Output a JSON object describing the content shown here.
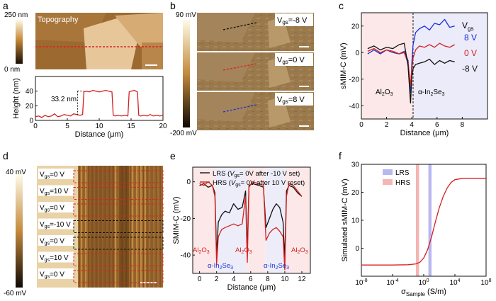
{
  "panel_letters": [
    "a",
    "b",
    "c",
    "d",
    "e",
    "f"
  ],
  "colors": {
    "red": "#d42020",
    "blue": "#1a2fd6",
    "black": "#111111",
    "pink_band": "#f4b6b4",
    "blue_band": "#b8b8f0",
    "stack_labels_red": "#e02020",
    "stack_labels_black": "#111111"
  },
  "panel_a": {
    "image_label": "Topography",
    "colorbar_max": "250 nm",
    "colorbar_min": "0 nm",
    "step_annotation": "33.2 nm"
  },
  "panel_b": {
    "colorbar_max": "90 mV",
    "colorbar_min": "-200 mV",
    "stack_labels": [
      "V",
      "V",
      "V"
    ],
    "stack_values": [
      "gs",
      "gs",
      "gs"
    ],
    "stack_suffix": [
      "=-8 V",
      "=0 V",
      "=8 V"
    ]
  },
  "panel_c": {
    "legend_title_v": "V",
    "legend_title_sub": "gs",
    "legend_entries": [
      "8 V",
      "0 V",
      "-8 V"
    ],
    "region_left": "Al",
    "region_left_sub1": "2",
    "region_left_mid": "O",
    "region_left_sub2": "3",
    "region_right_prefix": "α-In",
    "region_right_sub1": "2",
    "region_right_mid": "Se",
    "region_right_sub2": "3"
  },
  "panel_d": {
    "colorbar_max": "40 mV",
    "colorbar_min": "-60 mV",
    "rows": [
      {
        "v": "V",
        "sub": "gs",
        "val": "=0 V",
        "color": "#e02020"
      },
      {
        "v": "V",
        "sub": "gs",
        "val": "=10 V",
        "color": "#e02020"
      },
      {
        "v": "V",
        "sub": "gs",
        "val": "=0 V",
        "color": "#e02020"
      },
      {
        "v": "V",
        "sub": "gs",
        "val": "=-10 V",
        "color": "#111111"
      },
      {
        "v": "V",
        "sub": "gs",
        "val": "=0 V",
        "color": "#111111"
      },
      {
        "v": "V",
        "sub": "gs",
        "val": "=10 V",
        "color": "#e02020"
      },
      {
        "v": "V",
        "sub": "gs",
        "val": "=0 V",
        "color": "#e02020"
      }
    ]
  },
  "panel_e": {
    "legend": [
      {
        "name": "LRS",
        "detail_pre": "(",
        "detail_v": "V",
        "detail_sub": "gs",
        "detail_post": "= 0V after -10 V set)"
      },
      {
        "name": "HRS",
        "detail_pre": "(",
        "detail_v": "V",
        "detail_sub": "gs",
        "detail_post": "= 0V after 10 V reset)"
      }
    ],
    "region_al": "Al",
    "region_al_sub1": "2",
    "region_al_mid": "O",
    "region_al_sub2": "3",
    "region_in_prefix": "α-In",
    "region_in_sub1": "2",
    "region_in_mid": "Se",
    "region_in_sub2": "3"
  },
  "panel_f": {
    "legend": [
      "LRS",
      "HRS"
    ]
  },
  "chart_data": [
    {
      "id": "a-height",
      "type": "line",
      "xlabel": "Distance (μm)",
      "ylabel": "Height (nm)",
      "xlim": [
        0,
        20
      ],
      "ylim": [
        0,
        60
      ],
      "xticks": [
        0,
        5,
        10,
        15,
        20
      ],
      "yticks": [
        0,
        20,
        40
      ],
      "series": [
        {
          "color": "#d42020",
          "x": [
            0,
            0.5,
            1,
            1.5,
            2,
            2.5,
            3,
            3.5,
            4,
            4.5,
            5,
            5.5,
            6,
            6.5,
            7,
            7.4,
            7.6,
            8,
            8.5,
            9,
            9.5,
            10,
            10.5,
            11,
            11.5,
            12,
            12.2,
            12.5,
            13,
            13.5,
            14,
            14.5,
            14.7,
            15,
            15.5,
            16,
            16.2,
            16.5,
            17,
            17.5,
            18,
            18.5,
            19,
            19.5,
            20
          ],
          "y": [
            5,
            6,
            4,
            7,
            5,
            6,
            9,
            5,
            6,
            8,
            7,
            6,
            9,
            8,
            7,
            8,
            39,
            40,
            39,
            41,
            40,
            39,
            40,
            41,
            40,
            39,
            7,
            6,
            7,
            6,
            7,
            6,
            39,
            40,
            41,
            39,
            7,
            6,
            7,
            6,
            8,
            6,
            7,
            6,
            7
          ]
        }
      ]
    },
    {
      "id": "c-smim",
      "type": "line",
      "xlabel": "Distance (μm)",
      "ylabel": "sMIM-C (mV)",
      "xlim": [
        0,
        10
      ],
      "ylim": [
        -50,
        30
      ],
      "xticks": [
        0,
        2,
        4,
        6,
        8
      ],
      "yticks": [
        -40,
        -20,
        0,
        20
      ],
      "divider_x": 4.1,
      "series": [
        {
          "name": "8 V",
          "color": "#1a2fd6",
          "x": [
            0.5,
            1,
            1.5,
            2,
            2.5,
            3,
            3.4,
            3.7,
            3.9,
            4.0,
            4.1,
            4.3,
            4.6,
            5,
            5.4,
            5.8,
            6.2,
            6.6,
            7,
            7.4
          ],
          "y": [
            -1,
            2,
            -1,
            2,
            0,
            -1,
            1,
            -6,
            -30,
            -8,
            6,
            15,
            18,
            20,
            17,
            22,
            21,
            25,
            19,
            20
          ]
        },
        {
          "name": "0 V",
          "color": "#d42020",
          "x": [
            0.5,
            1,
            1.5,
            2,
            2.5,
            3,
            3.4,
            3.7,
            3.9,
            4.0,
            4.1,
            4.3,
            4.6,
            5,
            5.4,
            5.8,
            6.2,
            6.6,
            7,
            7.4
          ],
          "y": [
            1,
            3,
            0,
            2,
            1,
            -1,
            0,
            -8,
            -25,
            -12,
            -4,
            2,
            5,
            4,
            6,
            4,
            7,
            5,
            4,
            6
          ]
        },
        {
          "name": "-8 V",
          "color": "#111111",
          "x": [
            0.5,
            1,
            1.5,
            2,
            2.5,
            3,
            3.4,
            3.7,
            3.9,
            4.0,
            4.1,
            4.3,
            4.6,
            5,
            5.4,
            5.8,
            6.2,
            6.6,
            7,
            7.4
          ],
          "y": [
            3,
            5,
            2,
            4,
            3,
            6,
            7,
            -10,
            -38,
            -18,
            -12,
            -9,
            -8,
            -7,
            -5,
            -9,
            -6,
            -8,
            -6,
            -7
          ]
        }
      ]
    },
    {
      "id": "e-smim",
      "type": "line",
      "xlabel": "Distance (μm)",
      "ylabel": "SMIM-C (mV)",
      "xlim": [
        -0.8,
        13
      ],
      "ylim": [
        -50,
        8
      ],
      "xticks": [
        0,
        2,
        4,
        6,
        8,
        10,
        12
      ],
      "yticks": [
        -40,
        -20,
        0
      ],
      "series": [
        {
          "name": "LRS",
          "color": "#111111",
          "x": [
            0,
            0.5,
            1,
            1.5,
            1.8,
            2.0,
            2.2,
            2.6,
            3,
            3.5,
            4,
            4.5,
            5,
            5.4,
            5.6,
            5.8,
            6.2,
            7,
            7.5,
            7.8,
            8.2,
            8.6,
            9,
            9.4,
            9.8,
            10.0,
            10.2,
            10.5,
            11,
            11.5,
            12
          ],
          "y": [
            -2,
            -1,
            -3,
            -2,
            -6,
            -40,
            -22,
            -18,
            -16,
            -17,
            -12,
            -15,
            -14,
            -5,
            -38,
            -2,
            -1,
            -2,
            -3,
            -25,
            -20,
            -15,
            -12,
            -14,
            -22,
            -42,
            -5,
            -2,
            -3,
            -6,
            -8
          ]
        },
        {
          "name": "HRS",
          "color": "#d42020",
          "x": [
            0,
            0.5,
            1,
            1.5,
            1.8,
            2.0,
            2.2,
            2.6,
            3,
            3.5,
            4,
            4.5,
            5,
            5.4,
            5.6,
            5.8,
            6.2,
            7,
            7.5,
            7.8,
            8.2,
            8.6,
            9,
            9.4,
            9.8,
            10.0,
            10.2,
            10.5,
            11,
            11.5,
            12
          ],
          "y": [
            -1,
            -2,
            0,
            -2,
            -8,
            -45,
            -30,
            -26,
            -25,
            -24,
            -23,
            -24,
            -23,
            -8,
            -44,
            -3,
            0,
            -1,
            -2,
            -32,
            -28,
            -26,
            -25,
            -27,
            -30,
            -48,
            -8,
            -1,
            -2,
            -5,
            -8
          ]
        }
      ]
    },
    {
      "id": "f-sim",
      "type": "line",
      "xlabel": "σ Sample (S/m)",
      "ylabel": "Simulated sMIM-C (mV)",
      "xlim": [
        -8,
        8
      ],
      "xscale": "log10",
      "ylim": [
        -10,
        30
      ],
      "xticks": [
        "10^-8",
        "10^-4",
        "10^0",
        "10^4",
        "10^8"
      ],
      "yticks": [
        0,
        10,
        20,
        30
      ],
      "bands": [
        {
          "name": "HRS",
          "log_center": -0.8,
          "log_width": 0.4,
          "color": "#f4b6b4"
        },
        {
          "name": "LRS",
          "log_center": 0.8,
          "log_width": 0.4,
          "color": "#b8b8f0"
        }
      ],
      "series": [
        {
          "color": "#d42020",
          "logx": [
            -8,
            -6,
            -4,
            -2,
            -1,
            -0.5,
            0,
            0.5,
            1,
            1.5,
            2,
            2.5,
            3,
            3.5,
            4,
            5,
            6,
            8
          ],
          "y": [
            -6,
            -6,
            -6,
            -5.9,
            -5.6,
            -5,
            -3.5,
            -0.5,
            4,
            9.5,
            14.5,
            18.5,
            21.5,
            23.5,
            24.5,
            25,
            25,
            25
          ]
        }
      ]
    }
  ]
}
